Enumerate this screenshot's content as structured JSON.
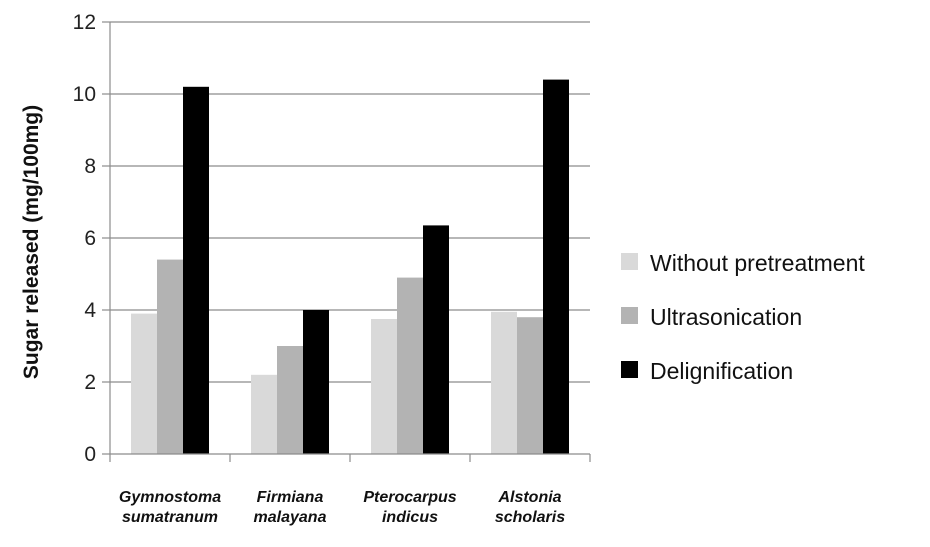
{
  "chart_data": {
    "type": "bar",
    "categories": [
      [
        "Gymnostoma",
        "sumatranum"
      ],
      [
        "Firmiana",
        "malayana"
      ],
      [
        "Pterocarpus",
        "indicus"
      ],
      [
        "Alstonia",
        "scholaris"
      ]
    ],
    "series": [
      {
        "name": "Without pretreatment",
        "values": [
          3.9,
          2.2,
          3.75,
          3.95
        ],
        "color": "#d9d9d9"
      },
      {
        "name": "Ultrasonication",
        "values": [
          5.4,
          3.0,
          4.9,
          3.8
        ],
        "color": "#b3b3b3"
      },
      {
        "name": "Delignification",
        "values": [
          10.2,
          4.0,
          6.35,
          10.4
        ],
        "color": "#000000"
      }
    ],
    "ylabel": "Sugar released (mg/100mg)",
    "xlabel": "",
    "ylim": [
      0,
      12
    ],
    "yticks": [
      0,
      2,
      4,
      6,
      8,
      10,
      12
    ],
    "grid": true,
    "legend_position": "right"
  }
}
